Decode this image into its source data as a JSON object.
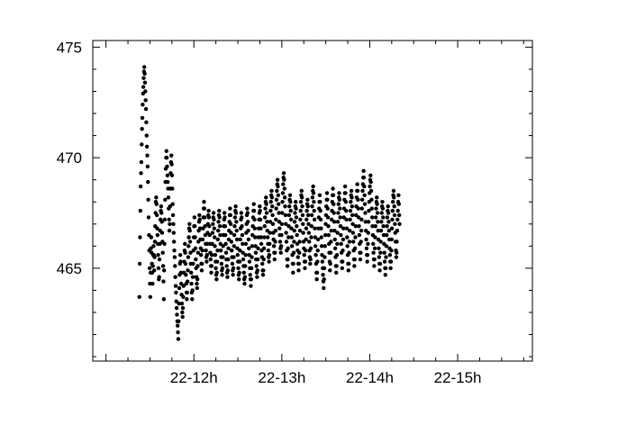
{
  "chart_data": {
    "type": "scatter",
    "title": "",
    "xlabel": "",
    "ylabel": "",
    "x_unit": "hour",
    "xlim": [
      10.85,
      15.85
    ],
    "ylim": [
      460.8,
      475.3
    ],
    "x_ticks": [
      {
        "value": 12,
        "label": "22-12h"
      },
      {
        "value": 13,
        "label": "22-13h"
      },
      {
        "value": 14,
        "label": "22-14h"
      },
      {
        "value": 15,
        "label": "22-15h"
      }
    ],
    "y_ticks": [
      {
        "value": 465,
        "label": "465"
      },
      {
        "value": 470,
        "label": "470"
      },
      {
        "value": 475,
        "label": "475"
      }
    ],
    "minor_x_step": 0.25,
    "minor_y_step": 1,
    "marker_color": "#000000",
    "grid": false,
    "series": [
      {
        "x_start": 11.38,
        "x_step": 0.00375,
        "values": [
          463.7,
          465.2,
          466.4,
          467.6,
          468.7,
          469.3,
          469.8,
          470.6,
          471.3,
          471.8,
          472.4,
          472.9,
          473.2,
          473.6,
          473.9,
          474.1,
          473.8,
          473.4,
          473.0,
          472.6,
          472.2,
          471.6,
          471.0,
          470.5,
          470.1,
          469.6,
          468.9,
          468.1,
          467.3,
          466.5,
          465.8,
          465.0,
          464.3,
          463.7,
          464.8,
          465.9,
          466.4,
          465.7,
          465.2,
          464.8,
          464.3,
          465.1,
          465.6,
          466.0,
          465.6,
          464.9,
          465.5,
          466.2,
          466.9,
          467.5,
          468.0,
          468.2,
          467.9,
          467.4,
          466.8,
          466.5,
          466.1,
          465.6,
          465.0,
          464.5,
          464.6,
          465.4,
          466.1,
          466.7,
          467.2,
          467.6,
          467.8,
          467.5,
          467.1,
          466.6,
          466.2,
          465.7,
          465.1,
          464.4,
          463.6,
          464.9,
          466.1,
          467.2,
          468.1,
          468.9,
          469.5,
          470.0,
          470.3,
          470.0,
          469.6,
          469.2,
          468.9,
          468.6,
          468.2,
          467.7,
          467.2,
          466.7,
          467.0,
          467.8,
          468.6,
          469.3,
          469.8,
          470.1,
          469.7,
          469.2,
          468.6,
          467.9,
          467.4,
          467.0,
          466.6,
          466.2,
          465.8,
          465.5,
          465.1,
          464.6,
          464.2,
          463.9,
          463.5,
          463.2,
          462.9,
          462.6,
          462.4,
          462.1,
          461.8,
          462.6,
          463.4,
          464.1,
          464.7,
          465.2,
          465.6,
          465.3,
          464.8,
          464.3,
          463.8,
          463.4,
          463.0,
          462.8,
          463.2,
          463.7,
          464.2,
          464.8,
          465.3,
          465.8,
          466.1,
          465.7,
          465.2,
          464.7,
          464.3,
          463.9,
          463.6,
          463.9,
          464.4,
          464.9,
          465.5,
          466.0,
          466.4,
          466.8,
          467.0,
          466.7,
          466.2,
          465.7,
          465.2,
          464.8,
          464.3,
          463.9,
          463.6,
          464.0,
          464.6,
          465.2,
          465.8,
          466.4,
          466.9,
          467.3,
          466.9,
          466.4,
          465.9,
          465.4,
          465.0,
          464.6,
          464.3,
          464.1,
          464.5,
          465.1,
          465.7,
          466.2,
          466.7,
          467.1,
          467.4,
          467.2,
          466.8,
          466.3,
          465.9,
          465.6,
          465.2,
          464.9,
          465.2,
          465.8,
          466.3,
          466.8,
          467.3,
          467.7,
          468.0,
          467.7,
          467.3,
          466.9,
          466.5,
          466.1,
          465.8,
          465.5,
          465.3,
          465.6,
          466.1,
          466.6,
          467.0,
          467.4,
          467.6,
          467.3,
          466.9,
          466.5,
          466.1,
          465.7,
          465.4,
          465.1,
          464.8,
          465.1,
          465.6,
          466.1,
          466.6,
          467.0,
          467.3,
          467.5,
          467.2,
          466.8,
          466.4,
          466.0,
          465.6,
          465.3,
          465.0,
          464.7,
          464.5,
          464.8,
          465.3,
          465.8,
          466.3,
          466.7,
          467.1,
          467.4,
          467.6,
          467.3,
          466.9,
          466.5,
          466.1,
          465.8,
          465.5,
          465.2,
          464.9,
          464.7,
          465.0,
          465.5,
          466.0,
          466.5,
          466.9,
          467.2,
          467.5,
          467.3,
          466.9,
          466.5,
          466.1,
          465.7,
          465.4,
          465.1,
          464.8,
          464.6,
          464.9,
          465.4,
          465.9,
          466.3,
          466.7,
          467.1,
          467.4,
          467.7,
          467.4,
          467.0,
          466.6,
          466.2,
          465.8,
          465.5,
          465.2,
          464.9,
          464.7,
          465.0,
          465.5,
          466.0,
          466.5,
          466.9,
          467.3,
          467.6,
          467.8,
          467.5,
          467.1,
          466.7,
          466.3,
          465.9,
          465.6,
          465.3,
          465.0,
          464.7,
          464.5,
          464.8,
          465.3,
          465.8,
          466.3,
          466.8,
          467.2,
          467.5,
          467.3,
          466.9,
          466.5,
          466.1,
          465.7,
          465.4,
          465.1,
          464.8,
          464.5,
          464.3,
          464.6,
          465.1,
          465.6,
          466.1,
          466.6,
          467.0,
          467.4,
          467.7,
          467.5,
          467.1,
          466.7,
          466.3,
          465.9,
          465.6,
          465.3,
          465.0,
          464.7,
          464.5,
          464.2,
          464.5,
          465.0,
          465.5,
          466.0,
          466.5,
          466.9,
          467.3,
          467.6,
          467.9,
          467.6,
          467.2,
          466.8,
          466.4,
          466.0,
          465.7,
          465.4,
          465.1,
          464.8,
          464.6,
          464.9,
          465.4,
          465.9,
          466.4,
          466.8,
          467.2,
          467.5,
          467.8,
          467.6,
          467.2,
          466.8,
          466.4,
          466.1,
          465.8,
          465.5,
          465.2,
          464.9,
          464.7,
          464.9,
          465.4,
          465.9,
          466.4,
          466.9,
          467.3,
          467.7,
          468.0,
          468.2,
          467.9,
          467.5,
          467.1,
          466.7,
          466.4,
          466.1,
          465.8,
          465.5,
          465.3,
          465.6,
          466.1,
          466.6,
          467.1,
          467.6,
          468.0,
          468.3,
          468.5,
          468.2,
          467.8,
          467.4,
          467.0,
          466.6,
          466.3,
          466.0,
          465.7,
          465.4,
          465.7,
          466.2,
          466.7,
          467.2,
          467.7,
          468.1,
          468.5,
          468.8,
          469.0,
          468.7,
          468.3,
          467.9,
          467.5,
          467.1,
          466.8,
          466.5,
          466.2,
          465.9,
          465.7,
          466.0,
          466.5,
          467.0,
          467.5,
          468.0,
          468.4,
          468.8,
          469.1,
          469.3,
          469.0,
          468.6,
          468.2,
          467.8,
          467.4,
          467.0,
          466.6,
          466.2,
          465.8,
          465.4,
          465.1,
          465.4,
          465.9,
          466.4,
          466.9,
          467.4,
          467.8,
          468.1,
          468.3,
          468.0,
          467.6,
          467.2,
          466.8,
          466.4,
          466.0,
          465.6,
          465.2,
          464.8,
          465.2,
          465.7,
          466.2,
          466.7,
          467.1,
          467.5,
          467.8,
          468.0,
          467.7,
          467.3,
          466.9,
          466.5,
          466.1,
          465.8,
          465.5,
          465.2,
          464.9,
          465.2,
          465.7,
          466.2,
          466.7,
          467.2,
          467.6,
          468.0,
          468.3,
          468.5,
          468.2,
          467.8,
          467.4,
          467.0,
          466.6,
          466.2,
          465.9,
          465.6,
          465.3,
          465.0,
          465.3,
          465.8,
          466.3,
          466.8,
          467.2,
          467.6,
          467.9,
          468.1,
          467.8,
          467.4,
          467.0,
          466.6,
          466.2,
          465.8,
          465.5,
          465.2,
          465.4,
          465.9,
          466.4,
          466.9,
          467.4,
          467.8,
          468.2,
          468.5,
          468.7,
          468.4,
          468.0,
          467.6,
          467.2,
          466.8,
          466.4,
          466.0,
          465.6,
          465.2,
          464.8,
          464.5,
          464.8,
          465.3,
          465.8,
          466.3,
          466.8,
          467.3,
          467.7,
          468.0,
          468.3,
          468.0,
          467.6,
          467.2,
          466.8,
          466.4,
          466.0,
          465.6,
          465.3,
          465.0,
          464.7,
          464.4,
          464.1,
          464.5,
          465.0,
          465.5,
          466.0,
          466.5,
          467.0,
          467.4,
          467.8,
          468.1,
          468.4,
          468.1,
          467.7,
          467.3,
          466.9,
          466.5,
          466.1,
          465.7,
          465.3,
          464.9,
          465.2,
          465.7,
          466.2,
          466.7,
          467.2,
          467.6,
          468.0,
          468.3,
          468.6,
          468.3,
          467.9,
          467.5,
          467.1,
          466.7,
          466.3,
          465.9,
          465.5,
          465.1,
          464.8,
          465.1,
          465.6,
          466.1,
          466.6,
          467.1,
          467.5,
          467.9,
          468.2,
          468.4,
          468.1,
          467.7,
          467.3,
          466.9,
          466.5,
          466.1,
          465.7,
          465.3,
          465.0,
          465.3,
          465.8,
          466.3,
          466.8,
          467.3,
          467.7,
          468.1,
          468.4,
          468.7,
          468.4,
          468.0,
          467.6,
          467.2,
          466.8,
          466.4,
          466.0,
          465.6,
          465.2,
          464.9,
          465.2,
          465.7,
          466.2,
          466.7,
          467.2,
          467.6,
          468.0,
          468.3,
          468.5,
          468.2,
          467.8,
          467.4,
          467.0,
          466.6,
          466.2,
          465.8,
          465.4,
          465.1,
          465.4,
          465.9,
          466.4,
          466.9,
          467.4,
          467.8,
          468.2,
          468.5,
          468.8,
          468.5,
          468.1,
          467.7,
          467.3,
          466.9,
          466.5,
          466.1,
          465.7,
          465.4,
          465.7,
          466.2,
          466.7,
          467.2,
          467.7,
          468.1,
          468.5,
          468.8,
          469.1,
          469.4,
          469.1,
          468.7,
          468.3,
          467.9,
          467.5,
          467.1,
          466.7,
          466.3,
          465.9,
          465.6,
          465.3,
          465.6,
          466.1,
          466.6,
          467.1,
          467.6,
          468.0,
          468.4,
          468.7,
          469.0,
          469.2,
          468.9,
          468.5,
          468.1,
          467.7,
          467.3,
          466.9,
          466.5,
          466.1,
          465.7,
          465.4,
          465.1,
          465.4,
          465.9,
          466.4,
          466.9,
          467.3,
          467.7,
          468.0,
          468.2,
          467.9,
          467.5,
          467.1,
          466.7,
          466.3,
          465.9,
          465.5,
          465.2,
          464.9,
          465.2,
          465.7,
          466.2,
          466.7,
          467.1,
          467.5,
          467.8,
          468.0,
          467.7,
          467.3,
          466.9,
          466.5,
          466.1,
          465.7,
          465.3,
          465.0,
          464.7,
          465.0,
          465.5,
          466.0,
          466.5,
          466.9,
          467.3,
          467.6,
          467.8,
          467.5,
          467.1,
          466.7,
          466.3,
          465.9,
          465.6,
          465.3,
          465.0,
          465.3,
          465.8,
          466.3,
          466.8,
          467.2,
          467.6,
          468.0,
          468.3,
          468.5,
          468.2,
          467.8,
          467.4,
          467.0,
          466.6,
          466.2,
          465.8,
          465.5,
          465.7,
          466.2,
          466.7,
          467.2,
          467.6,
          468.0,
          468.3,
          467.9,
          467.4,
          467.0
        ]
      }
    ]
  }
}
